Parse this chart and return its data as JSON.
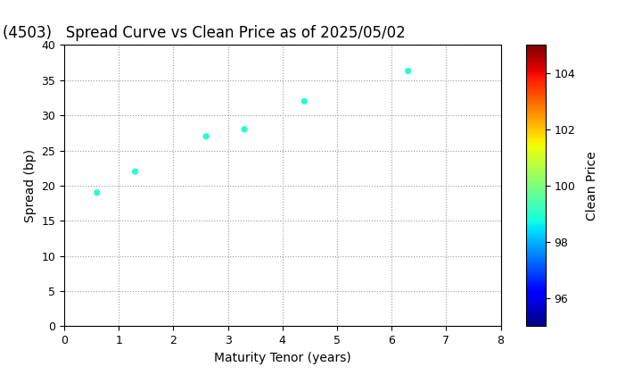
{
  "title": "(4503)   Spread Curve vs Clean Price as of 2025/05/02",
  "xlabel": "Maturity Tenor (years)",
  "ylabel": "Spread (bp)",
  "colorbar_label": "Clean Price",
  "xlim": [
    0,
    8
  ],
  "ylim": [
    0,
    40
  ],
  "xticks": [
    0,
    1,
    2,
    3,
    4,
    5,
    6,
    7,
    8
  ],
  "yticks": [
    0,
    5,
    10,
    15,
    20,
    25,
    30,
    35,
    40
  ],
  "colorbar_ticks": [
    96,
    98,
    100,
    102,
    104
  ],
  "colorbar_vmin": 95,
  "colorbar_vmax": 105,
  "scatter_x": [
    0.6,
    1.3,
    2.6,
    3.3,
    4.4,
    6.3
  ],
  "scatter_y": [
    19.0,
    22.0,
    27.0,
    28.0,
    32.0,
    36.3
  ],
  "scatter_c": [
    99.0,
    99.0,
    99.0,
    99.0,
    99.0,
    99.0
  ],
  "colormap": "jet",
  "marker_size": 18,
  "background_color": "#ffffff",
  "grid_color": "#999999",
  "title_fontsize": 12,
  "axis_fontsize": 10,
  "tick_fontsize": 9,
  "colorbar_fontsize": 10
}
